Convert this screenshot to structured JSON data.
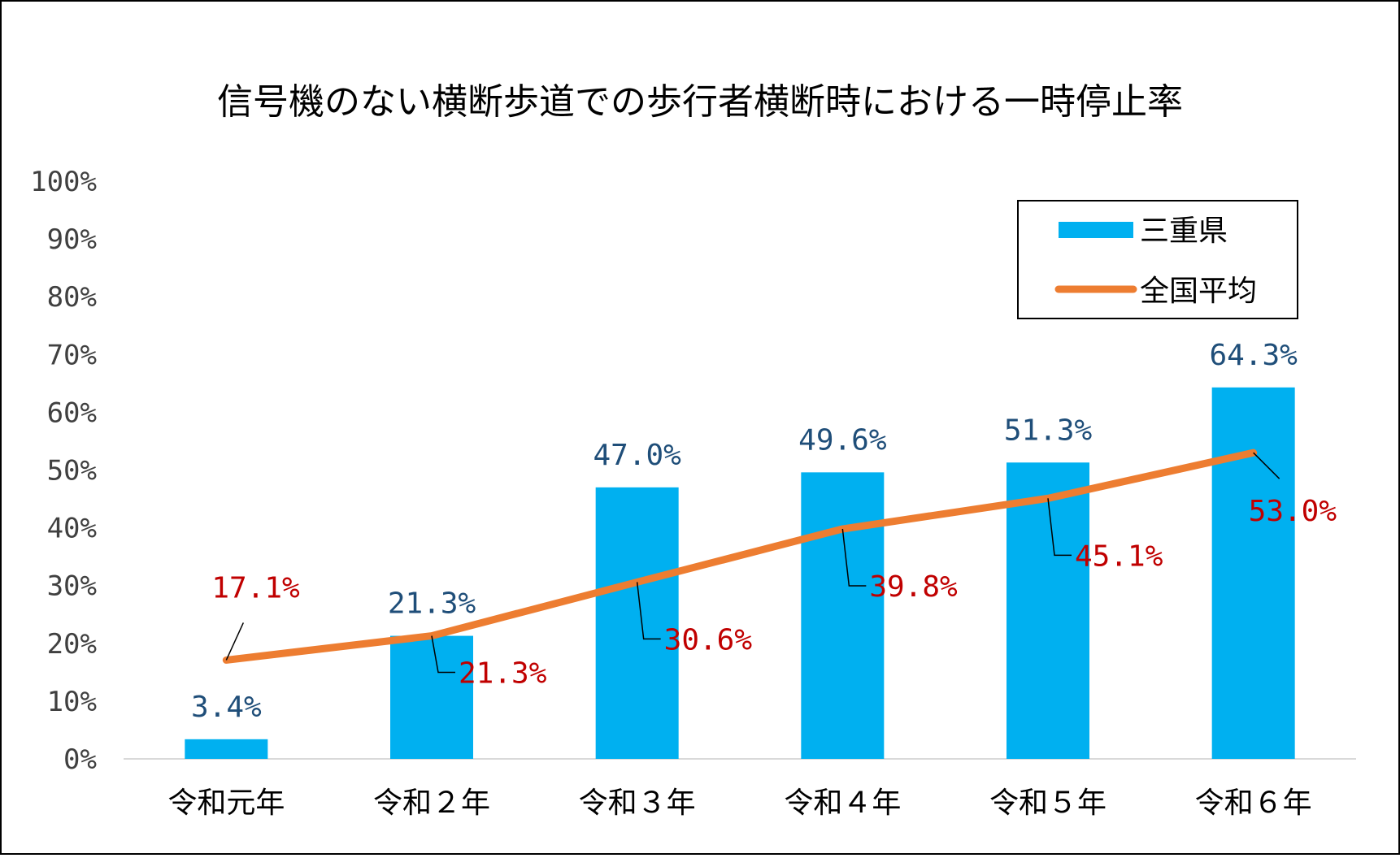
{
  "chart_data": {
    "type": "bar",
    "title": "信号機のない横断歩道での歩行者横断時における一時停止率",
    "categories": [
      "令和元年",
      "令和２年",
      "令和３年",
      "令和４年",
      "令和５年",
      "令和６年"
    ],
    "ylim": [
      0,
      100
    ],
    "y_ticks": [
      0,
      10,
      20,
      30,
      40,
      50,
      60,
      70,
      80,
      90,
      100
    ],
    "y_tick_labels": [
      "0%",
      "10%",
      "20%",
      "30%",
      "40%",
      "50%",
      "60%",
      "70%",
      "80%",
      "90%",
      "100%"
    ],
    "grid": false,
    "legend_position": "top-right",
    "series": [
      {
        "name": "三重県",
        "type": "bar",
        "color": "#00B0F0",
        "label_color": "#1F4E79",
        "values": [
          3.4,
          21.3,
          47.0,
          49.6,
          51.3,
          64.3
        ],
        "labels": [
          "3.4%",
          "21.3%",
          "47.0%",
          "49.6%",
          "51.3%",
          "64.3%"
        ]
      },
      {
        "name": "全国平均",
        "type": "line",
        "color": "#ED7D31",
        "label_color": "#C00000",
        "values": [
          17.1,
          21.3,
          30.6,
          39.8,
          45.1,
          53.0
        ],
        "labels": [
          "17.1%",
          "21.3%",
          "30.6%",
          "39.8%",
          "45.1%",
          "53.0%"
        ]
      }
    ]
  }
}
